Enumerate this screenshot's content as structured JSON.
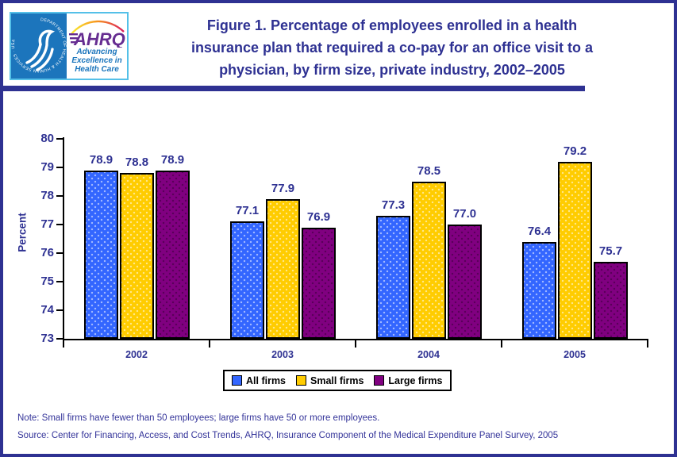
{
  "header": {
    "title": "Figure 1. Percentage of employees enrolled in a health insurance plan that required a co-pay for an office visit to a physician, by firm size, private industry, 2002–2005",
    "title_lines": [
      "Figure 1. Percentage of employees enrolled in a health",
      "insurance plan that required a co-pay for an office visit to a",
      "physician, by firm size, private industry, 2002–2005"
    ],
    "logo": {
      "hhs_seal_text": "DEPARTMENT OF HEALTH & HUMAN SERVICES · USA",
      "ahrq_acronym": "AHRQ",
      "ahrq_tagline": "Advancing Excellence in Health Care"
    }
  },
  "chart_data": {
    "type": "bar",
    "title": "Figure 1. Percentage of employees enrolled in a health insurance plan that required a co-pay for an office visit to a physician, by firm size, private industry, 2002–2005",
    "xlabel": "",
    "ylabel": "Percent",
    "ylim": [
      73,
      80
    ],
    "yticks": [
      73,
      74,
      75,
      76,
      77,
      78,
      79,
      80
    ],
    "categories": [
      "2002",
      "2003",
      "2004",
      "2005"
    ],
    "series": [
      {
        "name": "All firms",
        "color": "#3366FF",
        "values": [
          78.9,
          77.1,
          77.3,
          76.4
        ]
      },
      {
        "name": "Small firms",
        "color": "#FFCC00",
        "values": [
          78.8,
          77.9,
          78.5,
          79.2
        ]
      },
      {
        "name": "Large firms",
        "color": "#800080",
        "values": [
          78.9,
          76.9,
          77.0,
          75.7
        ]
      }
    ],
    "bar_value_labels": true,
    "legend_position": "bottom-center",
    "grid": false
  },
  "footer": {
    "note": "Note: Small firms have fewer than 50 employees; large firms have 50 or more employees.",
    "source": "Source: Center for Financing, Access, and Cost Trends, AHRQ, Insurance Component of the Medical Expenditure Panel Survey, 2005"
  },
  "colors": {
    "frame_navy": "#2E3192",
    "text_navy": "#2E3192",
    "footer_navy": "#333399",
    "hhs_blue": "#1C75BC",
    "ahrq_purple": "#662D91",
    "logo_border_blue": "#54C0E8",
    "bar_border": "#000000"
  }
}
